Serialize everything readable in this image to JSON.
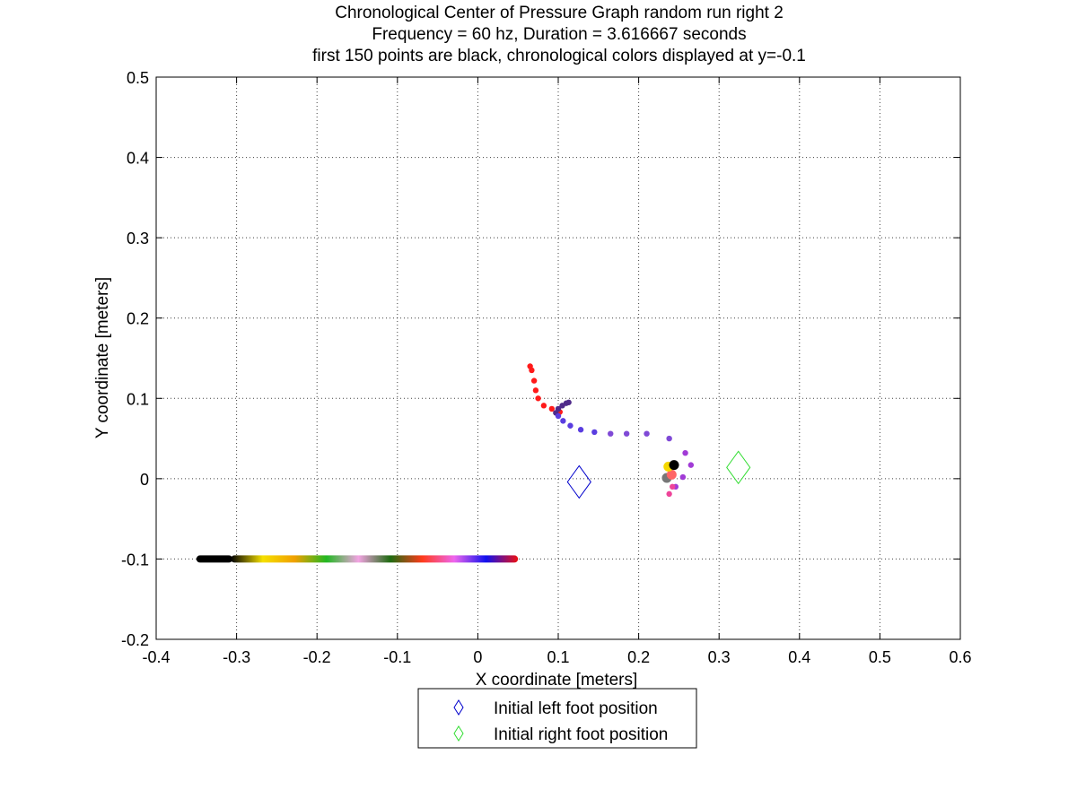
{
  "chart_data": {
    "type": "scatter",
    "title": [
      "Chronological Center of Pressure Graph random run right 2",
      "Frequency = 60 hz, Duration = 3.616667 seconds",
      "first 150 points are black, chronological colors displayed at y=-0.1"
    ],
    "xlabel": "X coordinate [meters]",
    "ylabel": "Y coordinate [meters]",
    "xlim": [
      -0.4,
      0.6
    ],
    "ylim": [
      -0.2,
      0.5
    ],
    "x_ticks": [
      -0.4,
      -0.3,
      -0.2,
      -0.1,
      0,
      0.1,
      0.2,
      0.3,
      0.4,
      0.5,
      0.6
    ],
    "y_ticks": [
      -0.2,
      -0.1,
      0,
      0.1,
      0.2,
      0.3,
      0.4,
      0.5
    ],
    "x_tick_labels": [
      "-0.4",
      "-0.3",
      "-0.2",
      "-0.1",
      "0",
      "0.1",
      "0.2",
      "0.3",
      "0.4",
      "0.5",
      "0.6"
    ],
    "y_tick_labels": [
      "-0.2",
      "-0.1",
      "0",
      "0.1",
      "0.2",
      "0.3",
      "0.4",
      "0.5"
    ],
    "grid": true,
    "legend_position": "below plot",
    "series": [
      {
        "name": "Initial left foot position",
        "marker": "diamond",
        "color": "#0000cc",
        "x": [
          0.126
        ],
        "y": [
          -0.004
        ]
      },
      {
        "name": "Initial right foot position",
        "marker": "diamond",
        "color": "#33dd33",
        "x": [
          0.324
        ],
        "y": [
          0.014
        ]
      },
      {
        "marker": "dot",
        "colors": [
          "#000000",
          "#f5d800",
          "#f0a000",
          "#777777",
          "#ff6666",
          "#ee4499",
          "#a13bd6",
          "#9e52d6",
          "#7f49d6",
          "#5a3de0",
          "#6633cc",
          "#4f2a8a",
          "#ff1a1a"
        ],
        "x": [
          0.244,
          0.237,
          0.241,
          0.235,
          0.242,
          0.238,
          0.246,
          0.255,
          0.265,
          0.258,
          0.238,
          0.21,
          0.185,
          0.165,
          0.145,
          0.128,
          0.115,
          0.106,
          0.1,
          0.097,
          0.1,
          0.105,
          0.11,
          0.113,
          0.102,
          0.092,
          0.082,
          0.075,
          0.072,
          0.07,
          0.067,
          0.065
        ],
        "y": [
          0.017,
          0.015,
          0.005,
          0.001,
          -0.01,
          -0.019,
          -0.01,
          0.002,
          0.017,
          0.032,
          0.05,
          0.056,
          0.056,
          0.056,
          0.058,
          0.061,
          0.066,
          0.072,
          0.078,
          0.082,
          0.087,
          0.091,
          0.094,
          0.095,
          0.083,
          0.087,
          0.091,
          0.1,
          0.11,
          0.122,
          0.135,
          0.14
        ]
      }
    ],
    "chronological_bar": {
      "y": -0.1,
      "x_range": [
        -0.35,
        0.05
      ],
      "black_until": -0.305,
      "color_stops": [
        "#000000",
        "#f5e000",
        "#f0a000",
        "#22b822",
        "#f3a3e3",
        "#1e6b10",
        "#ff3b1a",
        "#ee66ee",
        "#1010ee",
        "#ee1010"
      ]
    }
  },
  "legend": {
    "left_label": "Initial left foot position",
    "right_label": "Initial right foot position"
  }
}
